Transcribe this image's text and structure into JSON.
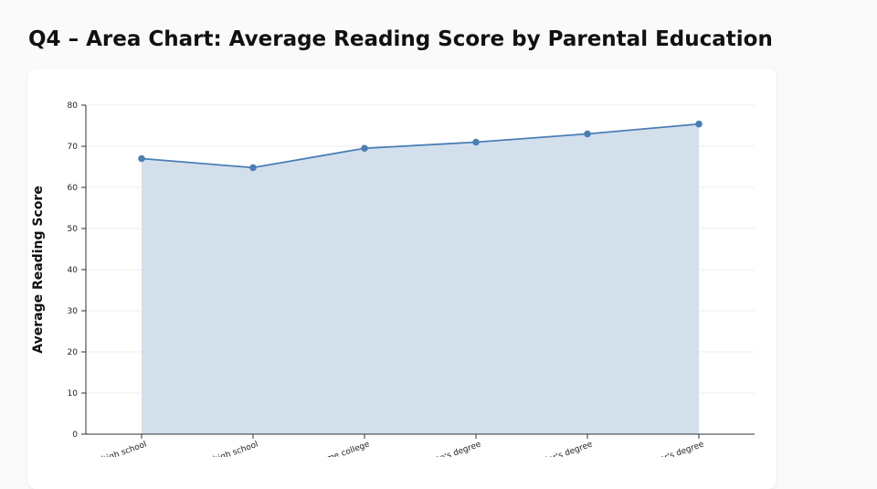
{
  "page": {
    "title": "Q4 – Area Chart: Average Reading Score by Parental Education"
  },
  "chart_data": {
    "type": "area",
    "categories": [
      "some high school",
      "high school",
      "some college",
      "associate's degree",
      "bachelor's degree",
      "master's degree"
    ],
    "series": [
      {
        "values": [
          67.0,
          64.8,
          69.5,
          71.0,
          73.0,
          75.4
        ]
      }
    ],
    "xlabel": "",
    "ylabel": "Average Reading Score",
    "ylim": [
      0,
      80
    ],
    "yticks": [
      0,
      10,
      20,
      30,
      40,
      50,
      60,
      70,
      80
    ],
    "grid": true,
    "colors": {
      "line": "#4a7fb5",
      "fill": "#d3e0ec",
      "grid": "#ececec",
      "axis": "#333333"
    }
  }
}
